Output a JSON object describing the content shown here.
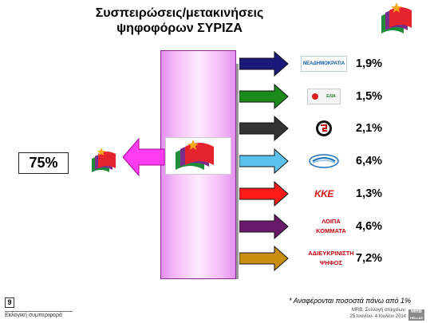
{
  "title": {
    "line1": "Συσπειρώσεις/μετακινήσεις",
    "line2": "ψηφοφόρων ΣΥΡΙΖΑ"
  },
  "total": {
    "label": "75%"
  },
  "footnote": "* Αναφέρονται ποσοστά πάνω από 1%",
  "page_number": "9",
  "footer_left": "Εκλογική συμπεριφορά",
  "footer_right": {
    "line1": "MRB, Συλλογή στοιχείων:",
    "line2": "25 Ιουνίου- 4 Ιουλίου 2014"
  },
  "brand": {
    "line1": "MRB",
    "line2": "HELLAS SA"
  },
  "colors": {
    "center_bar": "#f0a6f7",
    "big_arrow": "#ff3df0",
    "flag_red": "#e5232f",
    "flag_purple": "#7b2d8b",
    "flag_green": "#1e8c3a",
    "star": "#f6a61b"
  },
  "chart_data": {
    "type": "bar",
    "title": "Συσπειρώσεις/μετακινήσεις ψηφοφόρων ΣΥΡΙΖΑ",
    "retention": {
      "value": 75,
      "label": "75%"
    },
    "categories": [
      "ΝΕΑ ΔΗΜΟΚΡΑΤΙΑ",
      "ΕΛΙΑ",
      "ΧΡΥΣΗ ΑΥΓΗ",
      "ΑΝΕΞΑΡΤΗΤΟΙ ΕΛΛΗΝΕΣ",
      "ΚΚΕ",
      "ΛΟΙΠΑ ΚΟΜΜΑΤΑ",
      "ΑΔΙΕΥΚΡΙΝΙΣΤΗ ΨΗΦΟΣ"
    ],
    "values": [
      1.9,
      1.5,
      2.1,
      6.4,
      1.3,
      4.6,
      7.2
    ],
    "value_labels": [
      "1,9%",
      "1,5%",
      "2,1%",
      "6,4%",
      "1,3%",
      "4,6%",
      "7,2%"
    ],
    "arrow_colors": [
      "#1a1a7a",
      "#1a8a1a",
      "#333333",
      "#5bc2ee",
      "#ff1a1a",
      "#6a1a6a",
      "#c8900a"
    ],
    "logo_texts": [
      "ΝΕΑΔΗΜΟΚΡΑΤΙΑ",
      "ΕΛΙΑ",
      "",
      "",
      "ΚΚΕ"
    ],
    "text_labels": [
      "",
      "",
      "",
      "",
      "",
      "ΛΟΙΠΑ ΚΟΜΜΑΤΑ",
      "ΑΔΙΕΥΚΡΙΝΙΣΤΗ ΨΗΦΟΣ"
    ],
    "text_label_lines": [
      [],
      [],
      [],
      [],
      [],
      [
        "ΛΟΙΠΑ",
        "ΚΟΜΜΑΤΑ"
      ],
      [
        "ΑΔΙΕΥΚΡΙΝΙΣΤΗ",
        "ΨΗΦΟΣ"
      ]
    ]
  }
}
